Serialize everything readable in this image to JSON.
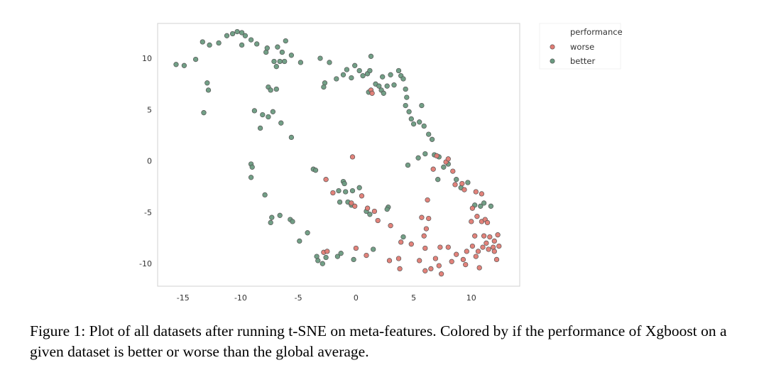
{
  "caption": "Figure 1: Plot of all datasets after running t-SNE on meta-features. Colored by if the performance of Xgboost on a given dataset is better or worse than the global average.",
  "colors": {
    "worse": "#e07b73",
    "better": "#6a9a80",
    "edge": "#555555",
    "frame": "#d0d0d0",
    "grid": "#eeeeee"
  },
  "chart_data": {
    "type": "scatter",
    "title": "",
    "xlabel": "",
    "ylabel": "",
    "xlim": [
      -17.2,
      14.2
    ],
    "ylim": [
      -12.2,
      13.4
    ],
    "xticks": [
      -15,
      -10,
      -5,
      0,
      5,
      10
    ],
    "yticks": [
      -10,
      -5,
      0,
      5,
      10
    ],
    "grid": false,
    "legend": {
      "title": "performance",
      "placement": "top-right outside",
      "entries": [
        "worse",
        "better"
      ]
    },
    "series": [
      {
        "name": "better",
        "color": "#6a9a80",
        "points": [
          [
            -15.6,
            9.4
          ],
          [
            -14.9,
            9.3
          ],
          [
            -13.9,
            9.9
          ],
          [
            -13.3,
            11.6
          ],
          [
            -12.7,
            11.3
          ],
          [
            -12.9,
            7.6
          ],
          [
            -12.8,
            6.9
          ],
          [
            -13.2,
            4.7
          ],
          [
            -11.9,
            11.5
          ],
          [
            -11.2,
            12.2
          ],
          [
            -10.7,
            12.4
          ],
          [
            -10.3,
            12.6
          ],
          [
            -9.9,
            12.5
          ],
          [
            -9.9,
            11.3
          ],
          [
            -9.6,
            12.2
          ],
          [
            -9.1,
            11.8
          ],
          [
            -8.6,
            11.4
          ],
          [
            -7.8,
            10.6
          ],
          [
            -7.7,
            11.0
          ],
          [
            -6.8,
            11.1
          ],
          [
            -6.4,
            10.6
          ],
          [
            -5.6,
            10.3
          ],
          [
            -4.8,
            9.6
          ],
          [
            -6.6,
            9.7
          ],
          [
            -6.2,
            9.7
          ],
          [
            -6.9,
            9.2
          ],
          [
            -7.1,
            9.7
          ],
          [
            -6.1,
            11.7
          ],
          [
            -7.6,
            7.2
          ],
          [
            -7.4,
            6.9
          ],
          [
            -6.9,
            7.0
          ],
          [
            -8.8,
            4.9
          ],
          [
            -8.1,
            4.5
          ],
          [
            -7.2,
            4.8
          ],
          [
            -7.6,
            4.3
          ],
          [
            -6.5,
            3.7
          ],
          [
            -8.3,
            3.2
          ],
          [
            -5.6,
            2.3
          ],
          [
            -9.1,
            -0.3
          ],
          [
            -9.0,
            -0.6
          ],
          [
            -9.1,
            -1.6
          ],
          [
            -7.9,
            -3.3
          ],
          [
            -7.3,
            -5.5
          ],
          [
            -7.4,
            -6.0
          ],
          [
            -6.6,
            -5.3
          ],
          [
            -5.7,
            -5.7
          ],
          [
            -5.5,
            -5.9
          ],
          [
            -4.9,
            -7.8
          ],
          [
            -4.2,
            -7.0
          ],
          [
            -3.7,
            -0.8
          ],
          [
            -3.5,
            -0.9
          ],
          [
            -3.4,
            -9.3
          ],
          [
            -3.3,
            -9.7
          ],
          [
            -2.6,
            -9.4
          ],
          [
            -2.9,
            -10.0
          ],
          [
            -1.6,
            -9.3
          ],
          [
            -1.3,
            -9.0
          ],
          [
            -0.2,
            -9.6
          ],
          [
            1.5,
            -8.6
          ],
          [
            -3.1,
            10.0
          ],
          [
            -2.7,
            7.6
          ],
          [
            -2.8,
            7.2
          ],
          [
            -2.3,
            9.6
          ],
          [
            -1.7,
            8.0
          ],
          [
            -1.1,
            8.4
          ],
          [
            -0.8,
            8.9
          ],
          [
            -0.4,
            8.1
          ],
          [
            -0.1,
            9.3
          ],
          [
            0.3,
            8.8
          ],
          [
            0.6,
            8.3
          ],
          [
            1.0,
            8.5
          ],
          [
            1.2,
            8.8
          ],
          [
            1.3,
            10.2
          ],
          [
            1.1,
            6.7
          ],
          [
            1.7,
            7.5
          ],
          [
            2.0,
            7.3
          ],
          [
            2.2,
            6.9
          ],
          [
            2.3,
            8.2
          ],
          [
            2.7,
            7.3
          ],
          [
            2.4,
            6.6
          ],
          [
            3.0,
            8.4
          ],
          [
            3.3,
            7.4
          ],
          [
            3.7,
            8.8
          ],
          [
            3.9,
            8.3
          ],
          [
            4.1,
            8.0
          ],
          [
            4.3,
            7.0
          ],
          [
            4.4,
            6.2
          ],
          [
            4.3,
            5.4
          ],
          [
            4.6,
            4.8
          ],
          [
            4.8,
            4.1
          ],
          [
            5.0,
            3.6
          ],
          [
            5.5,
            3.8
          ],
          [
            5.7,
            5.4
          ],
          [
            5.9,
            3.4
          ],
          [
            6.3,
            2.6
          ],
          [
            6.6,
            2.1
          ],
          [
            6.0,
            0.7
          ],
          [
            5.4,
            0.3
          ],
          [
            4.5,
            -0.4
          ],
          [
            6.8,
            0.6
          ],
          [
            7.2,
            0.4
          ],
          [
            7.6,
            -0.6
          ],
          [
            8.0,
            -0.3
          ],
          [
            7.1,
            -1.8
          ],
          [
            8.7,
            -1.8
          ],
          [
            9.1,
            -2.6
          ],
          [
            9.7,
            -2.1
          ],
          [
            10.3,
            -4.3
          ],
          [
            10.8,
            -4.4
          ],
          [
            11.1,
            -4.1
          ],
          [
            11.7,
            -4.4
          ],
          [
            -1.1,
            -2.0
          ],
          [
            -1.0,
            -2.2
          ],
          [
            -1.5,
            -2.9
          ],
          [
            -0.9,
            -3.0
          ],
          [
            -0.3,
            -2.9
          ],
          [
            0.3,
            -2.6
          ],
          [
            -1.4,
            -4.0
          ],
          [
            -0.7,
            -4.0
          ],
          [
            -0.4,
            -4.3
          ],
          [
            0.9,
            -4.9
          ],
          [
            1.2,
            -5.2
          ],
          [
            2.8,
            -4.5
          ],
          [
            2.7,
            -4.7
          ],
          [
            4.1,
            -7.4
          ]
        ]
      },
      {
        "name": "worse",
        "color": "#e07b73",
        "points": [
          [
            -0.3,
            0.4
          ],
          [
            -2.6,
            -1.8
          ],
          [
            -2.0,
            -3.1
          ],
          [
            0.5,
            -3.4
          ],
          [
            -0.4,
            -4.1
          ],
          [
            -0.1,
            -4.4
          ],
          [
            1.0,
            -4.6
          ],
          [
            1.6,
            -4.9
          ],
          [
            1.9,
            -5.8
          ],
          [
            3.0,
            -6.3
          ],
          [
            6.2,
            -3.8
          ],
          [
            -2.8,
            -8.9
          ],
          [
            -2.5,
            -8.8
          ],
          [
            0.0,
            -8.5
          ],
          [
            0.9,
            -9.2
          ],
          [
            2.9,
            -9.7
          ],
          [
            3.7,
            -9.5
          ],
          [
            3.8,
            -10.5
          ],
          [
            3.9,
            -7.9
          ],
          [
            4.8,
            -8.1
          ],
          [
            5.5,
            -9.7
          ],
          [
            5.9,
            -7.3
          ],
          [
            6.1,
            -6.6
          ],
          [
            6.0,
            -8.5
          ],
          [
            6.0,
            -10.7
          ],
          [
            6.5,
            -10.5
          ],
          [
            6.9,
            -9.5
          ],
          [
            7.2,
            -10.2
          ],
          [
            7.3,
            -8.4
          ],
          [
            7.4,
            -11.0
          ],
          [
            8.0,
            -8.4
          ],
          [
            8.3,
            -9.8
          ],
          [
            8.7,
            -9.1
          ],
          [
            9.3,
            -9.6
          ],
          [
            9.5,
            -10.1
          ],
          [
            9.6,
            -8.8
          ],
          [
            10.1,
            -8.3
          ],
          [
            10.4,
            -9.3
          ],
          [
            10.6,
            -8.8
          ],
          [
            10.7,
            -10.4
          ],
          [
            11.0,
            -8.4
          ],
          [
            11.3,
            -8.0
          ],
          [
            11.6,
            -7.4
          ],
          [
            11.9,
            -8.4
          ],
          [
            12.0,
            -8.8
          ],
          [
            12.4,
            -8.3
          ],
          [
            12.3,
            -7.2
          ],
          [
            12.0,
            -7.8
          ],
          [
            11.1,
            -7.3
          ],
          [
            10.3,
            -7.3
          ],
          [
            10.0,
            -5.9
          ],
          [
            10.5,
            -5.4
          ],
          [
            10.1,
            -4.6
          ],
          [
            10.9,
            -5.9
          ],
          [
            11.2,
            -5.7
          ],
          [
            11.4,
            -6.0
          ],
          [
            10.9,
            -3.2
          ],
          [
            10.4,
            -3.0
          ],
          [
            9.4,
            -2.8
          ],
          [
            9.2,
            -2.2
          ],
          [
            8.4,
            -1.0
          ],
          [
            8.6,
            -2.3
          ],
          [
            7.8,
            -0.1
          ],
          [
            7.0,
            0.5
          ],
          [
            8.0,
            0.2
          ],
          [
            6.7,
            -0.8
          ],
          [
            6.3,
            -5.6
          ],
          [
            5.7,
            -5.5
          ],
          [
            1.3,
            6.9
          ],
          [
            1.4,
            6.6
          ],
          [
            12.2,
            -9.6
          ],
          [
            11.5,
            -8.6
          ]
        ]
      }
    ]
  }
}
